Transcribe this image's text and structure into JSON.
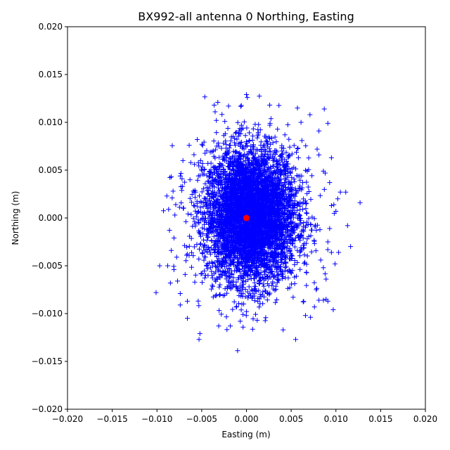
{
  "chart_data": {
    "type": "scatter",
    "title": "BX992-all antenna 0 Northing, Easting",
    "xlabel": "Easting (m)",
    "ylabel": "Northing (m)",
    "xlim": [
      -0.02,
      0.02
    ],
    "ylim": [
      -0.02,
      0.02
    ],
    "xticks": [
      -0.02,
      -0.015,
      -0.01,
      -0.005,
      0.0,
      0.005,
      0.01,
      0.015,
      0.02
    ],
    "yticks": [
      -0.02,
      -0.015,
      -0.01,
      -0.005,
      0.0,
      0.005,
      0.01,
      0.015,
      0.02
    ],
    "xtick_labels": [
      "−0.020",
      "−0.015",
      "−0.010",
      "−0.005",
      "0.000",
      "0.005",
      "0.010",
      "0.015",
      "0.020"
    ],
    "ytick_labels": [
      "−0.020",
      "−0.015",
      "−0.010",
      "−0.005",
      "0.000",
      "0.005",
      "0.010",
      "0.015",
      "0.020"
    ],
    "grid": false,
    "series": [
      {
        "marker": "+",
        "color": "#0000ff",
        "points": [
          [
            0.0,
            0.0129
          ],
          [
            0.0001,
            0.0126
          ],
          [
            -0.0032,
            0.0121
          ],
          [
            -0.0036,
            0.0118
          ],
          [
            -0.0035,
            0.0111
          ],
          [
            0.0026,
            0.0118
          ],
          [
            0.0057,
            0.0115
          ],
          [
            0.0087,
            0.0114
          ],
          [
            0.0091,
            0.0099
          ],
          [
            0.0071,
            0.0108
          ],
          [
            -0.0055,
            0.0082
          ],
          [
            -0.0064,
            0.0076
          ],
          [
            -0.0071,
            0.006
          ],
          [
            -0.0084,
            0.0043
          ],
          [
            -0.0072,
            0.0041
          ],
          [
            -0.0082,
            0.0028
          ],
          [
            -0.0089,
            0.0023
          ],
          [
            -0.0083,
            0.0021
          ],
          [
            -0.0079,
            0.0014
          ],
          [
            -0.0087,
            0.0009
          ],
          [
            -0.008,
            0.0003
          ],
          [
            -0.0086,
            -0.0013
          ],
          [
            -0.0081,
            -0.0021
          ],
          [
            -0.0084,
            -0.0034
          ],
          [
            -0.0078,
            -0.0041
          ],
          [
            -0.0088,
            -0.005
          ],
          [
            -0.0097,
            -0.005
          ],
          [
            -0.0081,
            -0.0054
          ],
          [
            -0.0085,
            -0.0068
          ],
          [
            -0.0077,
            -0.0066
          ],
          [
            -0.0101,
            -0.0078
          ],
          [
            -0.0074,
            -0.0079
          ],
          [
            -0.0074,
            -0.0091
          ],
          [
            -0.0066,
            -0.0087
          ],
          [
            -0.0066,
            -0.0105
          ],
          [
            -0.0052,
            -0.0121
          ],
          [
            -0.0053,
            -0.0127
          ],
          [
            -0.0031,
            -0.0113
          ],
          [
            -0.0018,
            -0.0113
          ],
          [
            0.0012,
            -0.0107
          ],
          [
            0.0041,
            -0.0117
          ],
          [
            0.0055,
            -0.0127
          ],
          [
            0.0066,
            -0.0102
          ],
          [
            0.0076,
            -0.0093
          ],
          [
            0.0081,
            -0.0086
          ],
          [
            0.0089,
            -0.0085
          ],
          [
            0.0091,
            -0.0087
          ],
          [
            0.0097,
            -0.0096
          ],
          [
            0.0086,
            -0.0086
          ],
          [
            0.0078,
            -0.0075
          ],
          [
            0.0089,
            -0.0064
          ],
          [
            0.0099,
            -0.0048
          ],
          [
            0.0086,
            -0.0052
          ],
          [
            0.0083,
            -0.0044
          ],
          [
            0.0095,
            -0.0036
          ],
          [
            0.0103,
            -0.0036
          ],
          [
            0.0091,
            -0.0025
          ],
          [
            0.0093,
            -0.0011
          ],
          [
            0.0113,
            -0.0008
          ],
          [
            0.01,
            0.0007
          ],
          [
            0.0095,
            0.0013
          ],
          [
            0.0102,
            0.002
          ],
          [
            0.0105,
            0.0027
          ],
          [
            0.0111,
            0.0027
          ],
          [
            0.0127,
            0.0016
          ],
          [
            0.0093,
            0.0037
          ],
          [
            0.0086,
            0.0049
          ],
          [
            0.0088,
            0.0047
          ],
          [
            0.0095,
            0.0063
          ],
          [
            0.0081,
            0.0066
          ],
          [
            0.0079,
            0.0072
          ],
          [
            0.0081,
            0.0091
          ],
          [
            0.0062,
            0.0081
          ],
          [
            0.0061,
            0.01
          ],
          [
            -0.002,
            0.0117
          ]
        ]
      },
      {
        "marker": "o",
        "color": "#ff0000",
        "points": [
          [
            0.0,
            0.0
          ]
        ]
      }
    ]
  }
}
